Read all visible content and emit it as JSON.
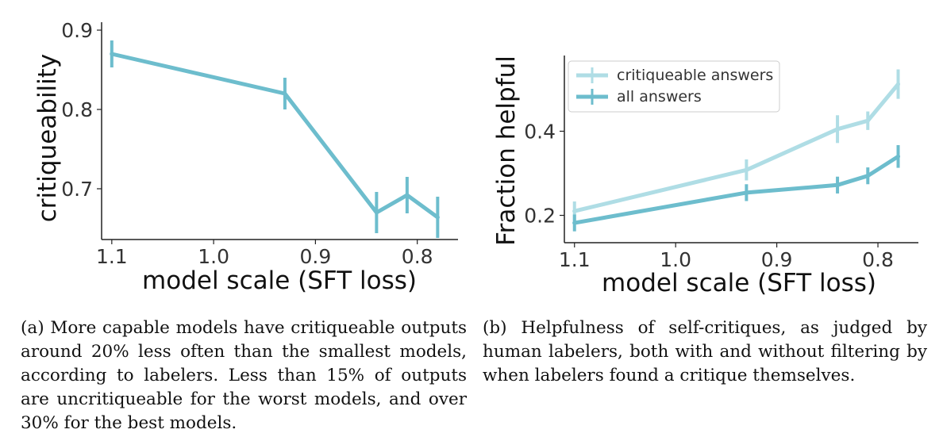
{
  "chart_data": [
    {
      "type": "line",
      "xlabel": "model scale (SFT loss)",
      "ylabel": "critiqueability",
      "x_reversed": true,
      "xlim": [
        1.11,
        0.76
      ],
      "ylim": [
        0.636,
        0.91
      ],
      "x_ticks": [
        1.1,
        1.0,
        0.9,
        0.8
      ],
      "x_tick_labels": [
        "1.1",
        "1.0",
        "0.9",
        "0.8"
      ],
      "y_ticks": [
        0.7,
        0.8,
        0.9
      ],
      "y_tick_labels": [
        "0.7",
        "0.8",
        "0.9"
      ],
      "series": [
        {
          "color": "#6dbdcd",
          "x": [
            1.1,
            0.93,
            0.84,
            0.81,
            0.78
          ],
          "y": [
            0.87,
            0.82,
            0.67,
            0.692,
            0.664
          ],
          "err": [
            0.017,
            0.02,
            0.026,
            0.023,
            0.026
          ]
        }
      ],
      "caption": "(a) More capable models have critiqueable outputs around 20% less often than the smallest models, according to labelers. Less than 15% of outputs are uncritiqueable for the worst models, and over 30% for the best models."
    },
    {
      "type": "line",
      "xlabel": "model scale (SFT loss)",
      "ylabel": "Fraction helpful",
      "x_reversed": true,
      "xlim": [
        1.11,
        0.76
      ],
      "ylim": [
        0.135,
        0.58
      ],
      "x_ticks": [
        1.1,
        1.0,
        0.9,
        0.8
      ],
      "x_tick_labels": [
        "1.1",
        "1.0",
        "0.9",
        "0.8"
      ],
      "y_ticks": [
        0.2,
        0.4
      ],
      "y_tick_labels": [
        "0.2",
        "0.4"
      ],
      "legend_position": "top-left",
      "series": [
        {
          "name": "critiqueable answers",
          "color": "#afdde5",
          "x": [
            1.1,
            0.93,
            0.84,
            0.81,
            0.78
          ],
          "y": [
            0.21,
            0.308,
            0.405,
            0.425,
            0.512
          ],
          "err": [
            0.023,
            0.025,
            0.033,
            0.022,
            0.035
          ]
        },
        {
          "name": "all answers",
          "color": "#6dbdcd",
          "x": [
            1.1,
            0.93,
            0.84,
            0.81,
            0.78
          ],
          "y": [
            0.182,
            0.254,
            0.272,
            0.294,
            0.34
          ],
          "err": [
            0.02,
            0.02,
            0.02,
            0.02,
            0.027
          ]
        }
      ],
      "caption": "(b) Helpfulness of self-critiques, as judged by human labelers, both with and without filtering by when labelers found a critique themselves."
    }
  ]
}
